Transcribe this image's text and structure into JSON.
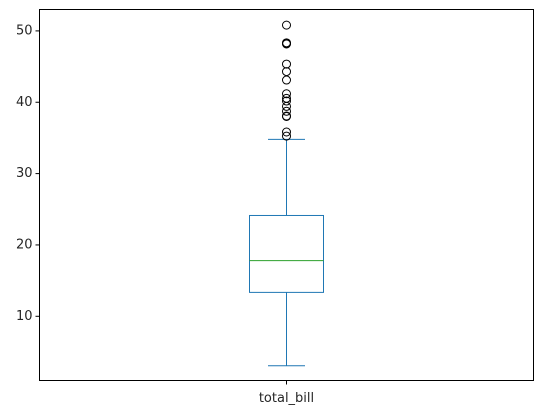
{
  "chart_data": {
    "type": "box",
    "categories": [
      "total_bill"
    ],
    "box": {
      "whisker_low": 3.07,
      "q1": 13.35,
      "median": 17.8,
      "q3": 24.13,
      "whisker_high": 34.8
    },
    "outliers": [
      35.26,
      35.83,
      38.01,
      38.07,
      38.73,
      39.42,
      40.17,
      40.55,
      41.19,
      43.11,
      44.3,
      45.35,
      48.17,
      48.27,
      48.33,
      50.81
    ],
    "y_ticks": [
      10,
      20,
      30,
      40,
      50
    ],
    "ylim": [
      1.0,
      53.0
    ],
    "grid": false,
    "colors": {
      "box": "#1f77b4",
      "median": "#2ca02c",
      "outlier": "#000000",
      "axes": "#000000"
    }
  }
}
